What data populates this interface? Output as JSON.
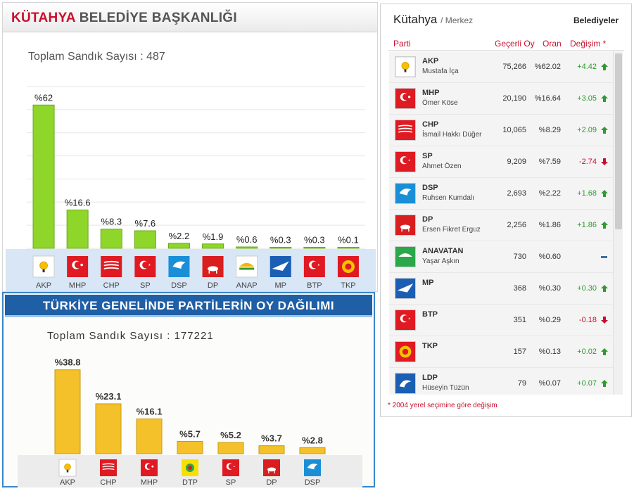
{
  "local": {
    "title_city": "KÜTAHYA",
    "title_rest": "BELEDİYE BAŞKANLIĞI",
    "total_label": "Toplam Sandık Sayısı : 487"
  },
  "national": {
    "title": "TÜRKİYE GENELİNDE PARTİLERİN OY DAĞILIMI",
    "total_label": "Toplam Sandık Sayısı : 177221"
  },
  "chart_data": [
    {
      "type": "bar",
      "categories": [
        "AKP",
        "MHP",
        "CHP",
        "SP",
        "DSP",
        "DP",
        "ANAP",
        "MP",
        "BTP",
        "TKP"
      ],
      "values": [
        62,
        16.6,
        8.3,
        7.6,
        2.2,
        1.9,
        0.6,
        0.3,
        0.3,
        0.1
      ],
      "value_labels": [
        "%62",
        "%16.6",
        "%8.3",
        "%7.6",
        "%2.2",
        "%1.9",
        "%0.6",
        "%0.3",
        "%0.3",
        "%0.1"
      ],
      "ylim": [
        0,
        70
      ],
      "grid": true,
      "bar_color": "#8fd62a"
    },
    {
      "type": "bar",
      "categories": [
        "AKP",
        "CHP",
        "MHP",
        "DTP",
        "SP",
        "DP",
        "DSP"
      ],
      "values": [
        38.8,
        23.1,
        16.1,
        5.7,
        5.2,
        3.7,
        2.8
      ],
      "value_labels": [
        "%38.8",
        "%23.1",
        "%16.1",
        "%5.7",
        "%5.2",
        "%3.7",
        "%2.8"
      ],
      "ylim": [
        0,
        40
      ],
      "grid": false,
      "bar_color": "#f5c12a"
    }
  ],
  "results": {
    "city": "Kütahya",
    "district": "/ Merkez",
    "type_label": "Belediyeler",
    "headers": {
      "party": "Parti",
      "votes": "Geçerli Oy",
      "share": "Oran",
      "change": "Değişim *"
    },
    "rows": [
      {
        "party": "AKP",
        "candidate": "Mustafa İça",
        "votes": "75,266",
        "share": "%62.02",
        "change": "+4.42",
        "trend": "up",
        "logo": "akp-logo"
      },
      {
        "party": "MHP",
        "candidate": "Ömer Köse",
        "votes": "20,190",
        "share": "%16.64",
        "change": "+3.05",
        "trend": "up",
        "logo": "mhp-logo"
      },
      {
        "party": "CHP",
        "candidate": "İsmail Hakkı Düğer",
        "votes": "10,065",
        "share": "%8.29",
        "change": "+2.09",
        "trend": "up",
        "logo": "chp-logo"
      },
      {
        "party": "SP",
        "candidate": "Ahmet Özen",
        "votes": "9,209",
        "share": "%7.59",
        "change": "-2.74",
        "trend": "down",
        "logo": "sp-logo"
      },
      {
        "party": "DSP",
        "candidate": "Ruhsen Kumdalı",
        "votes": "2,693",
        "share": "%2.22",
        "change": "+1.68",
        "trend": "up",
        "logo": "dsp-logo"
      },
      {
        "party": "DP",
        "candidate": "Ersen Fikret Erguz",
        "votes": "2,256",
        "share": "%1.86",
        "change": "+1.86",
        "trend": "up",
        "logo": "dp-logo"
      },
      {
        "party": "ANAVATAN",
        "candidate": "Yaşar Aşkın",
        "votes": "730",
        "share": "%0.60",
        "change": "",
        "trend": "same",
        "logo": "anavatan-logo"
      },
      {
        "party": "MP",
        "candidate": "",
        "votes": "368",
        "share": "%0.30",
        "change": "+0.30",
        "trend": "up",
        "logo": "mp-logo"
      },
      {
        "party": "BTP",
        "candidate": "",
        "votes": "351",
        "share": "%0.29",
        "change": "-0.18",
        "trend": "down",
        "logo": "btp-logo"
      },
      {
        "party": "TKP",
        "candidate": "",
        "votes": "157",
        "share": "%0.13",
        "change": "+0.02",
        "trend": "up",
        "logo": "tkp-logo"
      },
      {
        "party": "LDP",
        "candidate": "Hüseyin Tüzün",
        "votes": "79",
        "share": "%0.07",
        "change": "+0.07",
        "trend": "up",
        "logo": "ldp-logo"
      }
    ],
    "footnote": "* 2004 yerel seçimine göre değişim"
  },
  "colors": {
    "accent_red": "#c8102e",
    "up_green": "#2f9b2f",
    "down_red": "#c8102e",
    "national_header": "#1f5fa6",
    "logo_strip": "#d8e6f5"
  }
}
